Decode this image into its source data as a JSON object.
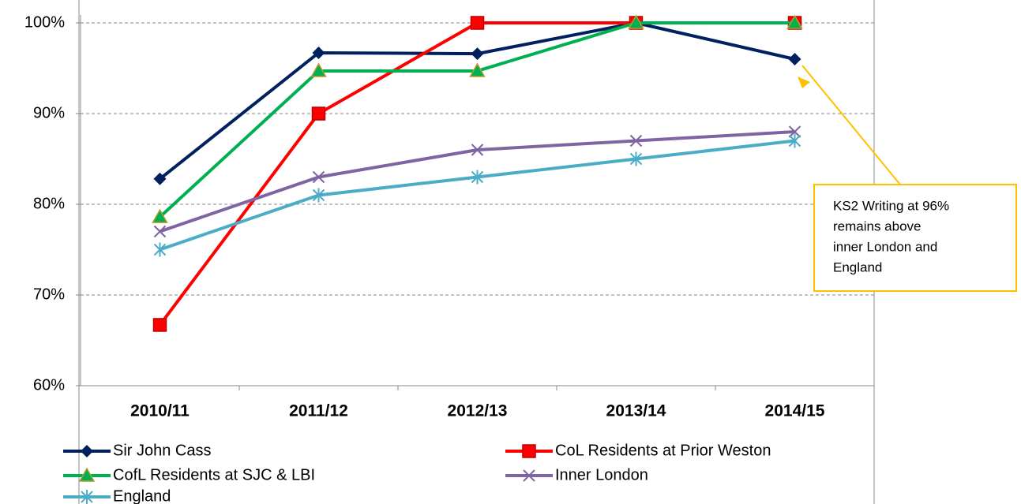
{
  "chart_data": {
    "type": "line",
    "categories": [
      "2010/11",
      "2011/12",
      "2012/13",
      "2013/14",
      "2014/15"
    ],
    "series": [
      {
        "name": "Sir John Cass",
        "color": "#002060",
        "marker": "diamond",
        "values": [
          82.8,
          96.7,
          96.6,
          100,
          96
        ]
      },
      {
        "name": "CoL Residents at Prior Weston",
        "color": "#ff0000",
        "marker": "square",
        "values": [
          66.7,
          90,
          100,
          100,
          100
        ]
      },
      {
        "name": "CofL Residents at SJC & LBI",
        "color": "#00b050",
        "marker": "triangle",
        "values": [
          78.6,
          94.7,
          94.7,
          100,
          100
        ]
      },
      {
        "name": "Inner London",
        "color": "#8064a2",
        "marker": "x",
        "values": [
          77,
          83,
          86,
          87,
          88
        ]
      },
      {
        "name": "England",
        "color": "#4bacc6",
        "marker": "star",
        "values": [
          75,
          81,
          83,
          85,
          87
        ]
      }
    ],
    "ylim": [
      60,
      100
    ],
    "yticks": [
      {
        "value": 60,
        "label": "60%"
      },
      {
        "value": 70,
        "label": "70%"
      },
      {
        "value": 80,
        "label": "80%"
      },
      {
        "value": 90,
        "label": "90%"
      },
      {
        "value": 100,
        "label": "100%"
      }
    ],
    "grid": true,
    "annotation": [
      "KS2 Writing at 96%",
      "remains above",
      "inner London and",
      "England"
    ]
  }
}
